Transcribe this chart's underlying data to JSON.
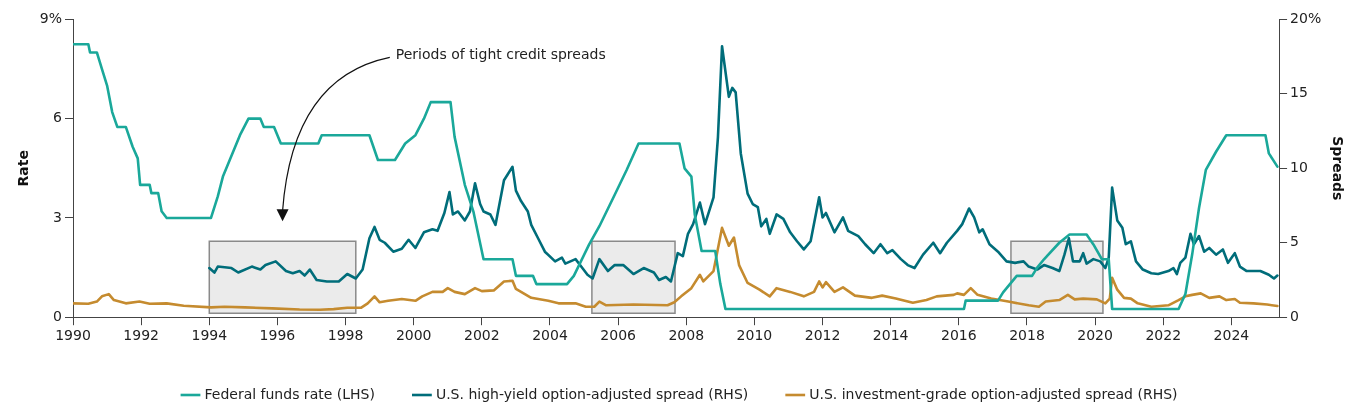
{
  "chart_data": {
    "type": "line",
    "xlim": [
      1990,
      2025.4
    ],
    "xticks": [
      1990,
      1992,
      1994,
      1996,
      1998,
      2000,
      2002,
      2004,
      2006,
      2008,
      2010,
      2012,
      2014,
      2016,
      2018,
      2020,
      2022,
      2024
    ],
    "ylabel": "Rate",
    "y2label": "Spreads",
    "ylim": [
      0,
      9
    ],
    "yticks": [
      0,
      3,
      6,
      {
        "value": 9,
        "label": "9%"
      }
    ],
    "y2lim": [
      0,
      20
    ],
    "y2ticks": [
      0,
      5,
      10,
      15,
      {
        "value": 20,
        "label": "20%"
      }
    ],
    "grid": false,
    "legend": "bottom",
    "marker": "none",
    "line_style": "solid",
    "annotations": [
      "Periods of tight credit spreads"
    ],
    "bands": [
      {
        "axis": "x",
        "from": 1994.0,
        "to": 1998.3,
        "color": "#ebebeb"
      },
      {
        "axis": "x",
        "from": 2005.23,
        "to": 2007.67,
        "color": "#ebebeb"
      },
      {
        "axis": "x",
        "from": 2017.53,
        "to": 2020.23,
        "color": "#ebebeb"
      }
    ],
    "series": [
      {
        "name": "Federal funds rate (LHS)",
        "color": "#1aa89a",
        "type": "line",
        "x": [
          1990.0,
          1990.45,
          1990.5,
          1990.7,
          1990.85,
          1991.0,
          1991.15,
          1991.3,
          1991.55,
          1991.75,
          1991.9,
          1991.97,
          1992.25,
          1992.3,
          1992.5,
          1992.6,
          1992.75,
          1994.05,
          1994.25,
          1994.4,
          1994.6,
          1994.9,
          1995.15,
          1995.5,
          1995.6,
          1995.9,
          1996.1,
          1997.2,
          1997.3,
          1998.7,
          1998.95,
          1999.45,
          1999.75,
          2000.05,
          2000.3,
          2000.5,
          2001.08,
          2001.2,
          2001.5,
          2001.75,
          2002.05,
          2002.9,
          2003.0,
          2003.5,
          2003.6,
          2004.5,
          2004.7,
          2005.15,
          2005.45,
          2005.9,
          2006.25,
          2006.6,
          2007.8,
          2007.95,
          2008.15,
          2008.25,
          2008.45,
          2008.85,
          2009.0,
          2009.15,
          2016.15,
          2016.2,
          2017.15,
          2017.3,
          2017.5,
          2017.7,
          2018.15,
          2018.3,
          2018.5,
          2018.95,
          2019.25,
          2019.75,
          2019.95,
          2020.2,
          2020.4,
          2020.5,
          2022.45,
          2022.65,
          2022.85,
          2023.05,
          2023.25,
          2023.55,
          2023.85,
          2025.0,
          2025.1,
          2025.35
        ],
        "values": [
          8.25,
          8.25,
          8.0,
          8.0,
          7.5,
          7.0,
          6.2,
          5.75,
          5.75,
          5.15,
          4.8,
          4.0,
          4.0,
          3.75,
          3.75,
          3.2,
          3.0,
          3.0,
          3.65,
          4.25,
          4.75,
          5.5,
          6.0,
          6.0,
          5.75,
          5.75,
          5.25,
          5.25,
          5.5,
          5.5,
          4.75,
          4.75,
          5.25,
          5.5,
          6.0,
          6.5,
          6.5,
          5.45,
          4.0,
          3.2,
          1.75,
          1.75,
          1.25,
          1.25,
          1.0,
          1.0,
          1.25,
          2.2,
          2.75,
          3.7,
          4.45,
          5.25,
          5.25,
          4.5,
          4.25,
          3.1,
          2.0,
          2.0,
          1.0,
          0.25,
          0.25,
          0.5,
          0.5,
          0.75,
          1.0,
          1.25,
          1.25,
          1.5,
          1.75,
          2.25,
          2.5,
          2.5,
          2.2,
          1.75,
          1.75,
          0.25,
          0.25,
          0.7,
          1.9,
          3.3,
          4.45,
          5.0,
          5.5,
          5.5,
          4.95,
          4.55
        ]
      },
      {
        "name": "U.S. high-yield option-adjusted spread (RHS)",
        "color": "#006d7a",
        "type": "line",
        "axis": "y2",
        "x": [
          1994.0,
          1994.15,
          1994.25,
          1994.65,
          1994.85,
          1995.25,
          1995.5,
          1995.65,
          1995.95,
          1996.25,
          1996.45,
          1996.65,
          1996.8,
          1996.95,
          1997.15,
          1997.45,
          1997.8,
          1998.05,
          1998.3,
          1998.5,
          1998.7,
          1998.85,
          1999.0,
          1999.15,
          1999.4,
          1999.65,
          1999.85,
          2000.05,
          2000.3,
          2000.55,
          2000.7,
          2000.9,
          2001.05,
          2001.15,
          2001.3,
          2001.5,
          2001.65,
          2001.8,
          2001.95,
          2002.05,
          2002.25,
          2002.4,
          2002.65,
          2002.9,
          2003.0,
          2003.15,
          2003.35,
          2003.45,
          2003.65,
          2003.85,
          2004.15,
          2004.35,
          2004.45,
          2004.75,
          2004.95,
          2005.1,
          2005.25,
          2005.45,
          2005.7,
          2005.9,
          2006.15,
          2006.45,
          2006.75,
          2007.05,
          2007.2,
          2007.4,
          2007.55,
          2007.75,
          2007.9,
          2008.05,
          2008.2,
          2008.4,
          2008.55,
          2008.8,
          2008.93,
          2009.05,
          2009.25,
          2009.35,
          2009.45,
          2009.6,
          2009.8,
          2009.95,
          2010.1,
          2010.2,
          2010.35,
          2010.45,
          2010.65,
          2010.85,
          2011.05,
          2011.25,
          2011.45,
          2011.65,
          2011.9,
          2012.0,
          2012.1,
          2012.35,
          2012.6,
          2012.75,
          2013.05,
          2013.25,
          2013.5,
          2013.7,
          2013.9,
          2014.05,
          2014.3,
          2014.5,
          2014.7,
          2014.95,
          2015.25,
          2015.45,
          2015.65,
          2015.95,
          2016.1,
          2016.3,
          2016.45,
          2016.6,
          2016.7,
          2016.9,
          2017.15,
          2017.4,
          2017.65,
          2017.9,
          2018.05,
          2018.3,
          2018.5,
          2018.75,
          2018.95,
          2019.1,
          2019.23,
          2019.35,
          2019.55,
          2019.65,
          2019.75,
          2019.95,
          2020.15,
          2020.3,
          2020.4,
          2020.5,
          2020.65,
          2020.8,
          2020.9,
          2021.05,
          2021.2,
          2021.4,
          2021.65,
          2021.85,
          2022.15,
          2022.3,
          2022.4,
          2022.5,
          2022.65,
          2022.8,
          2022.9,
          2023.05,
          2023.2,
          2023.35,
          2023.55,
          2023.75,
          2023.9,
          2024.1,
          2024.25,
          2024.45,
          2024.65,
          2024.85,
          2025.1,
          2025.25,
          2025.35
        ],
        "values": [
          3.3,
          3.0,
          3.4,
          3.3,
          3.0,
          3.4,
          3.2,
          3.5,
          3.75,
          3.1,
          2.95,
          3.1,
          2.8,
          3.2,
          2.5,
          2.4,
          2.4,
          2.9,
          2.6,
          3.2,
          5.3,
          6.06,
          5.2,
          5.0,
          4.4,
          4.6,
          5.2,
          4.65,
          5.7,
          5.9,
          5.8,
          7.0,
          8.4,
          6.9,
          7.1,
          6.5,
          7.1,
          9.0,
          7.6,
          7.1,
          6.9,
          6.2,
          9.2,
          10.1,
          8.5,
          7.8,
          7.1,
          6.2,
          5.3,
          4.4,
          3.75,
          4.0,
          3.6,
          3.9,
          3.3,
          2.85,
          2.6,
          3.9,
          3.1,
          3.5,
          3.5,
          2.9,
          3.3,
          3.0,
          2.5,
          2.7,
          2.4,
          4.3,
          4.1,
          5.6,
          6.25,
          7.7,
          6.25,
          8.05,
          12.1,
          18.2,
          14.8,
          15.4,
          15.1,
          11.0,
          8.3,
          7.6,
          7.4,
          6.1,
          6.6,
          5.6,
          6.9,
          6.6,
          5.7,
          5.1,
          4.55,
          5.1,
          8.05,
          6.7,
          7.0,
          5.7,
          6.7,
          5.8,
          5.45,
          4.9,
          4.3,
          4.9,
          4.3,
          4.5,
          3.9,
          3.5,
          3.3,
          4.2,
          5.0,
          4.3,
          5.0,
          5.8,
          6.25,
          7.3,
          6.7,
          5.7,
          5.9,
          4.9,
          4.4,
          3.75,
          3.65,
          3.75,
          3.4,
          3.2,
          3.5,
          3.3,
          3.1,
          4.2,
          5.3,
          3.75,
          3.75,
          4.3,
          3.6,
          3.9,
          3.75,
          3.3,
          4.0,
          8.7,
          6.5,
          6.0,
          4.9,
          5.1,
          3.75,
          3.2,
          2.95,
          2.9,
          3.1,
          3.3,
          2.9,
          3.65,
          4.0,
          5.6,
          4.9,
          5.45,
          4.4,
          4.65,
          4.2,
          4.55,
          3.65,
          4.3,
          3.4,
          3.1,
          3.1,
          3.1,
          2.85,
          2.6,
          2.8
        ]
      },
      {
        "name": "U.S. investment-grade option-adjusted spread (RHS)",
        "color": "#c58b2f",
        "type": "line",
        "axis": "y2",
        "x": [
          1990.0,
          1990.45,
          1990.7,
          1990.85,
          1991.05,
          1991.2,
          1991.55,
          1991.95,
          1992.25,
          1992.75,
          1993.25,
          1994.05,
          1994.45,
          1995.05,
          1995.85,
          1996.65,
          1997.25,
          1997.65,
          1998.05,
          1998.45,
          1998.65,
          1998.85,
          1999.0,
          1999.25,
          1999.65,
          2000.05,
          2000.25,
          2000.55,
          2000.85,
          2001.0,
          2001.2,
          2001.5,
          2001.8,
          2002.0,
          2002.35,
          2002.65,
          2002.9,
          2003.0,
          2003.45,
          2003.95,
          2004.25,
          2004.75,
          2005.05,
          2005.3,
          2005.45,
          2005.65,
          2006.45,
          2007.45,
          2007.65,
          2007.85,
          2008.15,
          2008.4,
          2008.5,
          2008.8,
          2009.05,
          2009.25,
          2009.4,
          2009.55,
          2009.8,
          2010.15,
          2010.45,
          2010.65,
          2011.05,
          2011.45,
          2011.75,
          2011.9,
          2012.0,
          2012.1,
          2012.35,
          2012.6,
          2012.95,
          2013.45,
          2013.75,
          2014.15,
          2014.65,
          2015.05,
          2015.35,
          2015.85,
          2015.95,
          2016.15,
          2016.35,
          2016.55,
          2016.95,
          2017.45,
          2018.05,
          2018.35,
          2018.55,
          2018.95,
          2019.2,
          2019.4,
          2019.65,
          2020.05,
          2020.3,
          2020.43,
          2020.5,
          2020.65,
          2020.85,
          2021.05,
          2021.25,
          2021.65,
          2022.15,
          2022.45,
          2022.65,
          2022.85,
          2023.1,
          2023.35,
          2023.65,
          2023.85,
          2024.1,
          2024.25,
          2024.65,
          2025.05,
          2025.35
        ],
        "values": [
          0.93,
          0.9,
          1.05,
          1.4,
          1.55,
          1.15,
          0.93,
          1.05,
          0.9,
          0.93,
          0.77,
          0.66,
          0.7,
          0.66,
          0.59,
          0.52,
          0.5,
          0.54,
          0.63,
          0.63,
          0.93,
          1.4,
          1.0,
          1.1,
          1.22,
          1.1,
          1.4,
          1.7,
          1.7,
          1.95,
          1.7,
          1.55,
          1.95,
          1.75,
          1.8,
          2.4,
          2.45,
          1.9,
          1.3,
          1.1,
          0.93,
          0.93,
          0.7,
          0.7,
          1.05,
          0.8,
          0.85,
          0.8,
          1.0,
          1.4,
          1.95,
          2.85,
          2.4,
          3.1,
          6.0,
          4.8,
          5.35,
          3.5,
          2.3,
          1.85,
          1.4,
          1.95,
          1.7,
          1.4,
          1.7,
          2.4,
          2.0,
          2.35,
          1.7,
          2.0,
          1.45,
          1.3,
          1.45,
          1.25,
          0.97,
          1.15,
          1.4,
          1.5,
          1.6,
          1.5,
          1.95,
          1.5,
          1.25,
          1.05,
          0.8,
          0.7,
          1.05,
          1.15,
          1.5,
          1.2,
          1.25,
          1.2,
          0.93,
          1.25,
          2.65,
          1.85,
          1.3,
          1.25,
          0.93,
          0.7,
          0.8,
          1.15,
          1.4,
          1.5,
          1.6,
          1.3,
          1.4,
          1.15,
          1.22,
          0.97,
          0.93,
          0.85,
          0.75
        ]
      }
    ]
  }
}
